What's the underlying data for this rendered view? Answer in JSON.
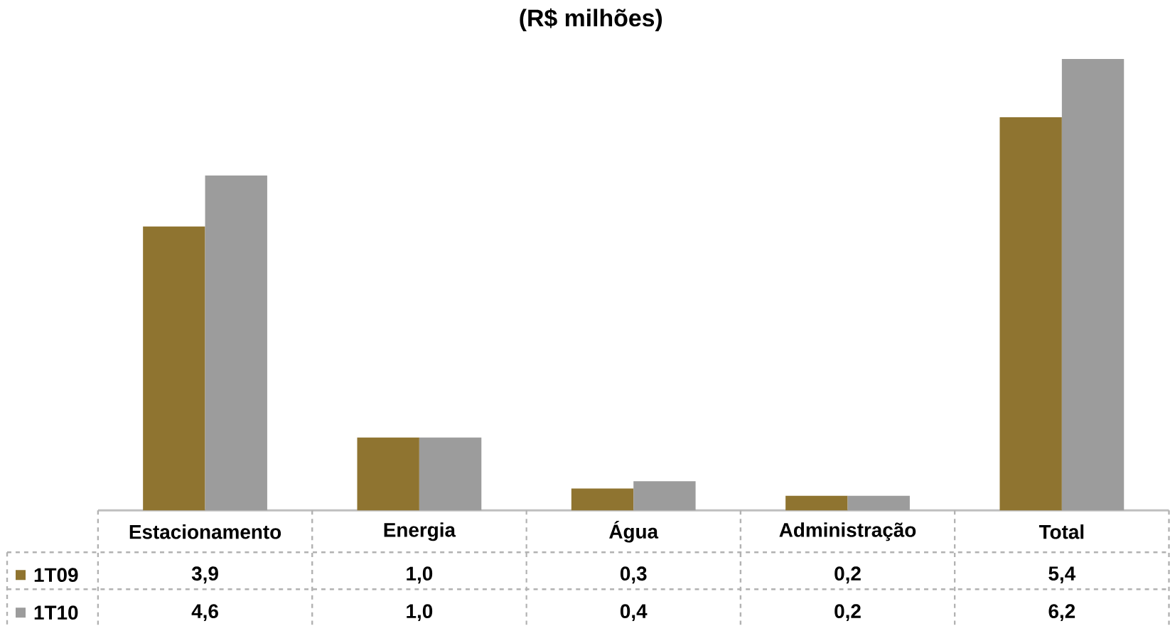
{
  "chart_data": {
    "type": "bar",
    "title": "(R$ milhões)",
    "legend": "bottom left",
    "categories": [
      "Estacionamento",
      "Energia",
      "Água",
      "Administração",
      "Total"
    ],
    "series": [
      {
        "name": "1T09",
        "color": "#8f7430",
        "values": [
          3.9,
          1.0,
          0.3,
          0.2,
          5.4
        ],
        "value_labels": [
          "3,9",
          "1,0",
          "0,3",
          "0,2",
          "5,4"
        ]
      },
      {
        "name": "1T10",
        "color": "#9c9c9c",
        "values": [
          4.6,
          1.0,
          0.4,
          0.2,
          6.2
        ],
        "value_labels": [
          "4,6",
          "1,0",
          "0,4",
          "0,2",
          "6,2"
        ]
      }
    ]
  }
}
